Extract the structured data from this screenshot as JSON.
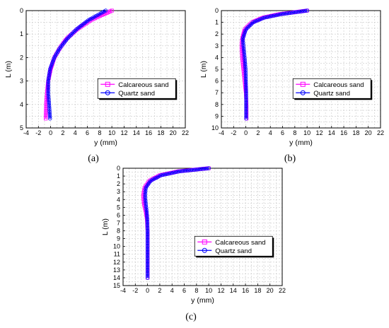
{
  "chart_data": [
    {
      "type": "line",
      "panel_label": "(a)",
      "xlabel": "y (mm)",
      "ylabel": "L  (m)",
      "xlim": [
        -4,
        22
      ],
      "ylim": [
        5,
        0
      ],
      "xticks": [
        "-4",
        "-2",
        "0",
        "2",
        "4",
        "6",
        "8",
        "10",
        "12",
        "14",
        "16",
        "18",
        "20",
        "22"
      ],
      "yticks": [
        "0",
        "1",
        "2",
        "3",
        "4",
        "5"
      ],
      "grid": true,
      "legend_position": "right-middle",
      "series": [
        {
          "name": "Calcareous sand",
          "color": "#ff00ff",
          "marker": "square",
          "x": [
            10.0,
            6.6,
            4.3,
            2.6,
            1.5,
            0.6,
            0.0,
            -0.4,
            -0.6,
            -0.75,
            -0.8
          ],
          "y": [
            0.0,
            0.4,
            0.8,
            1.2,
            1.6,
            2.0,
            2.5,
            3.0,
            3.5,
            4.0,
            4.6
          ]
        },
        {
          "name": "Quartz sand",
          "color": "#0000ff",
          "marker": "circle",
          "x": [
            9.0,
            6.2,
            4.2,
            2.7,
            1.5,
            0.6,
            -0.1,
            -0.4,
            -0.4,
            -0.25,
            -0.1
          ],
          "y": [
            0.0,
            0.4,
            0.8,
            1.2,
            1.6,
            2.0,
            2.5,
            3.0,
            3.5,
            4.0,
            4.6
          ]
        }
      ]
    },
    {
      "type": "line",
      "panel_label": "(b)",
      "xlabel": "y (mm)",
      "ylabel": "L  (m)",
      "xlim": [
        -4,
        22
      ],
      "ylim": [
        10,
        0
      ],
      "xticks": [
        "-4",
        "-2",
        "0",
        "2",
        "4",
        "6",
        "8",
        "10",
        "12",
        "14",
        "16",
        "18",
        "20",
        "22"
      ],
      "yticks": [
        "0",
        "1",
        "2",
        "3",
        "4",
        "5",
        "6",
        "7",
        "8",
        "9",
        "10"
      ],
      "grid": true,
      "legend_position": "right-middle",
      "series": [
        {
          "name": "Calcareous sand",
          "color": "#ff00ff",
          "marker": "square",
          "x": [
            10.0,
            5.5,
            2.8,
            1.0,
            -0.2,
            -0.6,
            -0.7,
            -0.6,
            -0.4,
            -0.2,
            0.0,
            0.1,
            0.1,
            0.1
          ],
          "y": [
            0.0,
            0.3,
            0.6,
            1.0,
            1.6,
            2.4,
            3.0,
            4.0,
            5.0,
            6.0,
            7.0,
            8.0,
            8.6,
            9.2
          ]
        },
        {
          "name": "Quartz sand",
          "color": "#0000ff",
          "marker": "circle",
          "x": [
            10.0,
            5.8,
            3.0,
            1.2,
            0.0,
            -0.5,
            -0.4,
            -0.2,
            -0.05,
            0.0,
            0.05,
            0.05,
            0.05,
            0.05
          ],
          "y": [
            0.0,
            0.3,
            0.6,
            1.0,
            1.6,
            2.4,
            3.0,
            4.0,
            5.0,
            6.0,
            7.0,
            8.0,
            8.6,
            9.2
          ]
        }
      ]
    },
    {
      "type": "line",
      "panel_label": "(c)",
      "xlabel": "y (mm)",
      "ylabel": "L  (m)",
      "xlim": [
        -4,
        22
      ],
      "ylim": [
        15,
        0
      ],
      "xticks": [
        "-4",
        "-2",
        "0",
        "2",
        "4",
        "6",
        "8",
        "10",
        "12",
        "14",
        "16",
        "18",
        "20",
        "22"
      ],
      "yticks": [
        "0",
        "1",
        "2",
        "3",
        "4",
        "5",
        "6",
        "7",
        "8",
        "9",
        "10",
        "11",
        "12",
        "13",
        "14",
        "15"
      ],
      "grid": true,
      "legend_position": "right-middle",
      "series": [
        {
          "name": "Calcareous sand",
          "color": "#ff00ff",
          "marker": "square",
          "x": [
            10.0,
            5.0,
            2.0,
            0.3,
            -0.5,
            -0.7,
            -0.6,
            -0.3,
            -0.1,
            0.0,
            0.0,
            0.0
          ],
          "y": [
            0.0,
            0.4,
            0.9,
            1.6,
            2.5,
            3.5,
            4.5,
            5.5,
            6.5,
            8.0,
            11.0,
            14.0
          ]
        },
        {
          "name": "Quartz sand",
          "color": "#0000ff",
          "marker": "circle",
          "x": [
            10.0,
            5.2,
            2.2,
            0.5,
            -0.3,
            -0.4,
            -0.3,
            -0.15,
            -0.05,
            0.0,
            0.0,
            0.0
          ],
          "y": [
            0.0,
            0.4,
            0.9,
            1.6,
            2.5,
            3.5,
            4.5,
            5.5,
            6.5,
            8.0,
            11.0,
            14.0
          ]
        }
      ]
    }
  ]
}
